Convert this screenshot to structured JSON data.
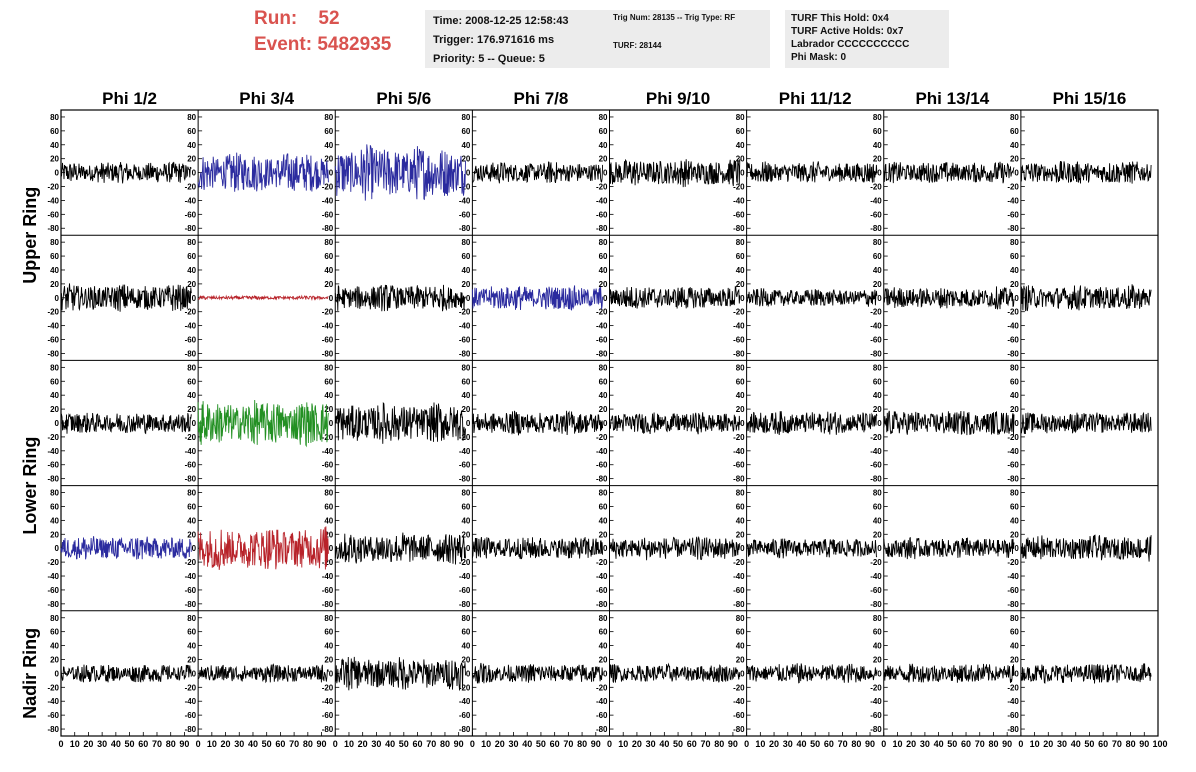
{
  "header": {
    "run_label": "Run:",
    "run_value": "52",
    "event_label": "Event:",
    "event_value": "5482935"
  },
  "time_box": {
    "time": "Time: 2008-12-25 12:58:43",
    "trigger": "Trigger: 176.971616 ms",
    "priority": "Priority: 5 -- Queue: 5"
  },
  "trig_box": {
    "trig": "Trig Num: 28135 -- Trig Type: RF",
    "turf": "TURF: 28144"
  },
  "turf_box": {
    "hold": "TURF This Hold: 0x4",
    "active": "TURF Active Holds: 0x7",
    "labrador": "Labrador CCCCCCCCCC",
    "phimask": "Phi Mask: 0"
  },
  "chart_data": {
    "type": "line",
    "columns": [
      "Phi 1/2",
      "Phi 3/4",
      "Phi 5/6",
      "Phi 7/8",
      "Phi 9/10",
      "Phi 11/12",
      "Phi 13/14",
      "Phi 15/16"
    ],
    "ring_labels": [
      "Upper Ring",
      "Lower Ring",
      "Nadir Ring"
    ],
    "rows_per_ring": [
      2,
      2,
      1
    ],
    "ylim": [
      -90,
      90
    ],
    "yticks": [
      80,
      60,
      40,
      20,
      0,
      -20,
      -40,
      -60,
      -80
    ],
    "xlim": [
      0,
      100
    ],
    "xticks": [
      0,
      10,
      20,
      30,
      40,
      50,
      60,
      70,
      80,
      90
    ],
    "last_xtick_label": "100",
    "colors": {
      "default": "#000000",
      "blue": "#2b2b9f",
      "red": "#b8232a",
      "green": "#239023"
    },
    "panels": [
      {
        "row": 0,
        "col": 0,
        "amp": 12,
        "color": "default"
      },
      {
        "row": 0,
        "col": 1,
        "amp": 22,
        "color": "blue"
      },
      {
        "row": 0,
        "col": 2,
        "amp": 30,
        "color": "blue"
      },
      {
        "row": 0,
        "col": 3,
        "amp": 12,
        "color": "default"
      },
      {
        "row": 0,
        "col": 4,
        "amp": 15,
        "color": "default"
      },
      {
        "row": 0,
        "col": 5,
        "amp": 12,
        "color": "default"
      },
      {
        "row": 0,
        "col": 6,
        "amp": 12,
        "color": "default"
      },
      {
        "row": 0,
        "col": 7,
        "amp": 13,
        "color": "default"
      },
      {
        "row": 1,
        "col": 0,
        "amp": 15,
        "color": "default"
      },
      {
        "row": 1,
        "col": 1,
        "amp": 2,
        "color": "red"
      },
      {
        "row": 1,
        "col": 2,
        "amp": 15,
        "color": "default"
      },
      {
        "row": 1,
        "col": 3,
        "amp": 14,
        "color": "blue"
      },
      {
        "row": 1,
        "col": 4,
        "amp": 13,
        "color": "default"
      },
      {
        "row": 1,
        "col": 5,
        "amp": 10,
        "color": "default"
      },
      {
        "row": 1,
        "col": 6,
        "amp": 12,
        "color": "default"
      },
      {
        "row": 1,
        "col": 7,
        "amp": 14,
        "color": "default"
      },
      {
        "row": 2,
        "col": 0,
        "amp": 12,
        "color": "default"
      },
      {
        "row": 2,
        "col": 1,
        "amp": 25,
        "color": "green"
      },
      {
        "row": 2,
        "col": 2,
        "amp": 22,
        "color": "default"
      },
      {
        "row": 2,
        "col": 3,
        "amp": 13,
        "color": "default"
      },
      {
        "row": 2,
        "col": 4,
        "amp": 12,
        "color": "default"
      },
      {
        "row": 2,
        "col": 5,
        "amp": 13,
        "color": "default"
      },
      {
        "row": 2,
        "col": 6,
        "amp": 14,
        "color": "default"
      },
      {
        "row": 2,
        "col": 7,
        "amp": 12,
        "color": "default"
      },
      {
        "row": 3,
        "col": 0,
        "amp": 14,
        "color": "blue"
      },
      {
        "row": 3,
        "col": 1,
        "amp": 24,
        "color": "red"
      },
      {
        "row": 3,
        "col": 2,
        "amp": 18,
        "color": "default"
      },
      {
        "row": 3,
        "col": 3,
        "amp": 13,
        "color": "default"
      },
      {
        "row": 3,
        "col": 4,
        "amp": 13,
        "color": "default"
      },
      {
        "row": 3,
        "col": 5,
        "amp": 11,
        "color": "default"
      },
      {
        "row": 3,
        "col": 6,
        "amp": 12,
        "color": "default"
      },
      {
        "row": 3,
        "col": 7,
        "amp": 14,
        "color": "default"
      },
      {
        "row": 4,
        "col": 0,
        "amp": 10,
        "color": "default"
      },
      {
        "row": 4,
        "col": 1,
        "amp": 10,
        "color": "default"
      },
      {
        "row": 4,
        "col": 2,
        "amp": 18,
        "color": "default"
      },
      {
        "row": 4,
        "col": 3,
        "amp": 11,
        "color": "default"
      },
      {
        "row": 4,
        "col": 4,
        "amp": 10,
        "color": "default"
      },
      {
        "row": 4,
        "col": 5,
        "amp": 11,
        "color": "default"
      },
      {
        "row": 4,
        "col": 6,
        "amp": 11,
        "color": "default"
      },
      {
        "row": 4,
        "col": 7,
        "amp": 11,
        "color": "default"
      }
    ]
  }
}
